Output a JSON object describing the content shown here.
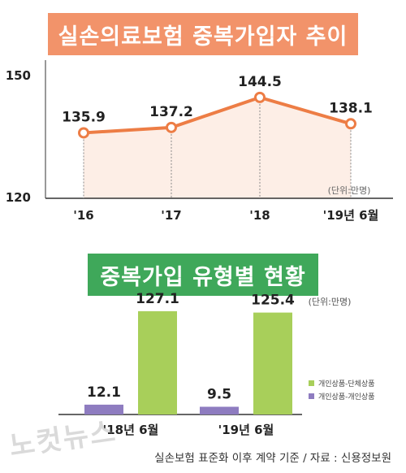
{
  "colors": {
    "title_1_bg": "#f2936a",
    "title_2_bg": "#3fa85a",
    "line": "#ed7d45",
    "area_fill": "#fdeee6",
    "bar_group": "#a8cf5a",
    "bar_individual": "#8e7cc0"
  },
  "chart_data": [
    {
      "type": "line",
      "title": "실손의료보험 중복가입자 추이",
      "unit_note": "(단위:만명)",
      "categories": [
        "'16",
        "'17",
        "'18",
        "'19년 6월"
      ],
      "values": [
        135.9,
        137.2,
        144.5,
        138.1
      ],
      "value_labels": [
        "135.9",
        "137.2",
        "144.5",
        "138.1"
      ],
      "ylim": [
        120,
        150
      ],
      "y_tick_labels": [
        "150",
        "120"
      ],
      "grid": false,
      "fill_area": true
    },
    {
      "type": "bar",
      "title": "중복가입 유형별 현황",
      "unit_note": "(단위:만명)",
      "categories": [
        "'18년 6월",
        "'19년 6월"
      ],
      "series": [
        {
          "name": "개인상품-개인상품",
          "values": [
            12.1,
            9.5
          ],
          "value_labels": [
            "12.1",
            "9.5"
          ]
        },
        {
          "name": "개인상품-단체상품",
          "values": [
            127.1,
            125.4
          ],
          "value_labels": [
            "127.1",
            "125.4"
          ]
        }
      ],
      "legend": [
        {
          "label": "개인상품-단체상품",
          "color": "#a8cf5a"
        },
        {
          "label": "개인상품-개인상품",
          "color": "#8e7cc0"
        }
      ],
      "legend_position": "right",
      "ylim": [
        0,
        140
      ]
    }
  ],
  "footer": {
    "source": "실손보험 표준화 이후 계약 기준 / 자료 : 신용정보원",
    "watermark": "노컷뉴스"
  }
}
